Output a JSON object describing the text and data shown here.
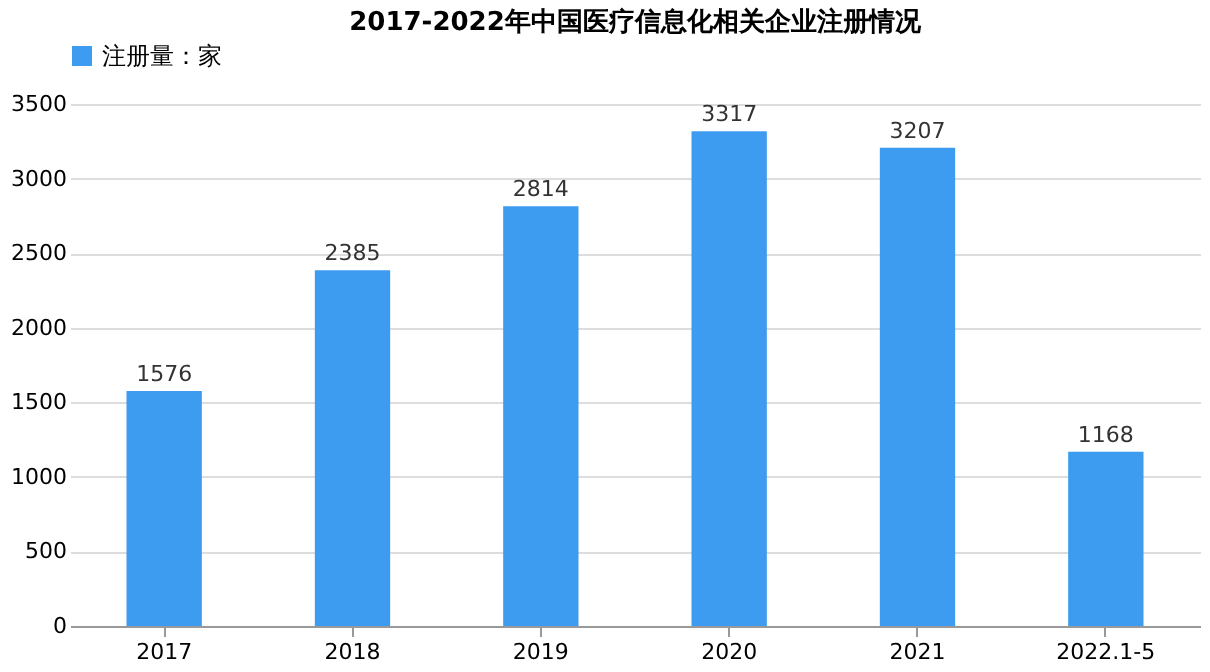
{
  "chart_data": {
    "type": "bar",
    "title": "2017-2022年中国医疗信息化相关企业注册情况",
    "categories": [
      "2017",
      "2018",
      "2019",
      "2020",
      "2021",
      "2022.1-5"
    ],
    "series": [
      {
        "name": "注册量：家",
        "color": "#3d9cf0",
        "values": [
          1576,
          2385,
          2814,
          3317,
          3207,
          1168
        ]
      }
    ],
    "ylim": [
      0,
      3500
    ],
    "yticks": [
      0,
      500,
      1000,
      1500,
      2000,
      2500,
      3000,
      3500
    ],
    "grid": "y",
    "legend": "top",
    "data_labels": true
  }
}
